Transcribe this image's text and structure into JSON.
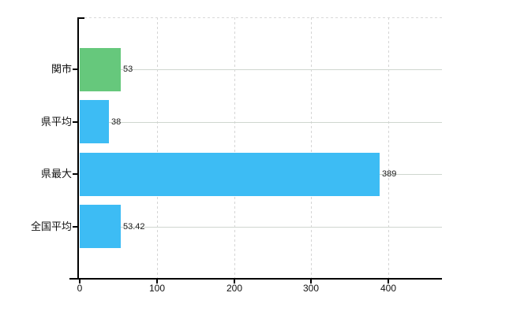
{
  "chart_data": {
    "type": "bar",
    "orientation": "horizontal",
    "title": "",
    "categories": [
      "関市",
      "県平均",
      "県最大",
      "全国平均"
    ],
    "values": [
      53,
      38,
      389,
      53.42
    ],
    "value_labels": [
      "53",
      "38",
      "389",
      "53.42"
    ],
    "series": [
      {
        "name": "値",
        "values": [
          53,
          38,
          389,
          53.42
        ]
      }
    ],
    "x_ticks": [
      0,
      100,
      200,
      300,
      400
    ],
    "x_tick_labels": [
      "0",
      "100",
      "200",
      "300",
      "400"
    ],
    "xlim": [
      0,
      470
    ],
    "xlabel": "",
    "ylabel": "",
    "grid": true,
    "gridlines": {
      "vertical": "dashed",
      "horizontal": "solid",
      "top_border": "dashed"
    },
    "legend": false,
    "bar_colors": [
      "#66c87c",
      "#3dbcf4",
      "#3dbcf4",
      "#3dbcf4"
    ]
  },
  "colors": {
    "background": "#ffffff",
    "bar_green": "#66c87c",
    "bar_blue": "#3dbcf4",
    "hgrid": "#cfd6cf",
    "vgrid": "#d5d5d5",
    "axis": "#000000",
    "text": "#111111",
    "value_text": "#1b1b1b"
  }
}
